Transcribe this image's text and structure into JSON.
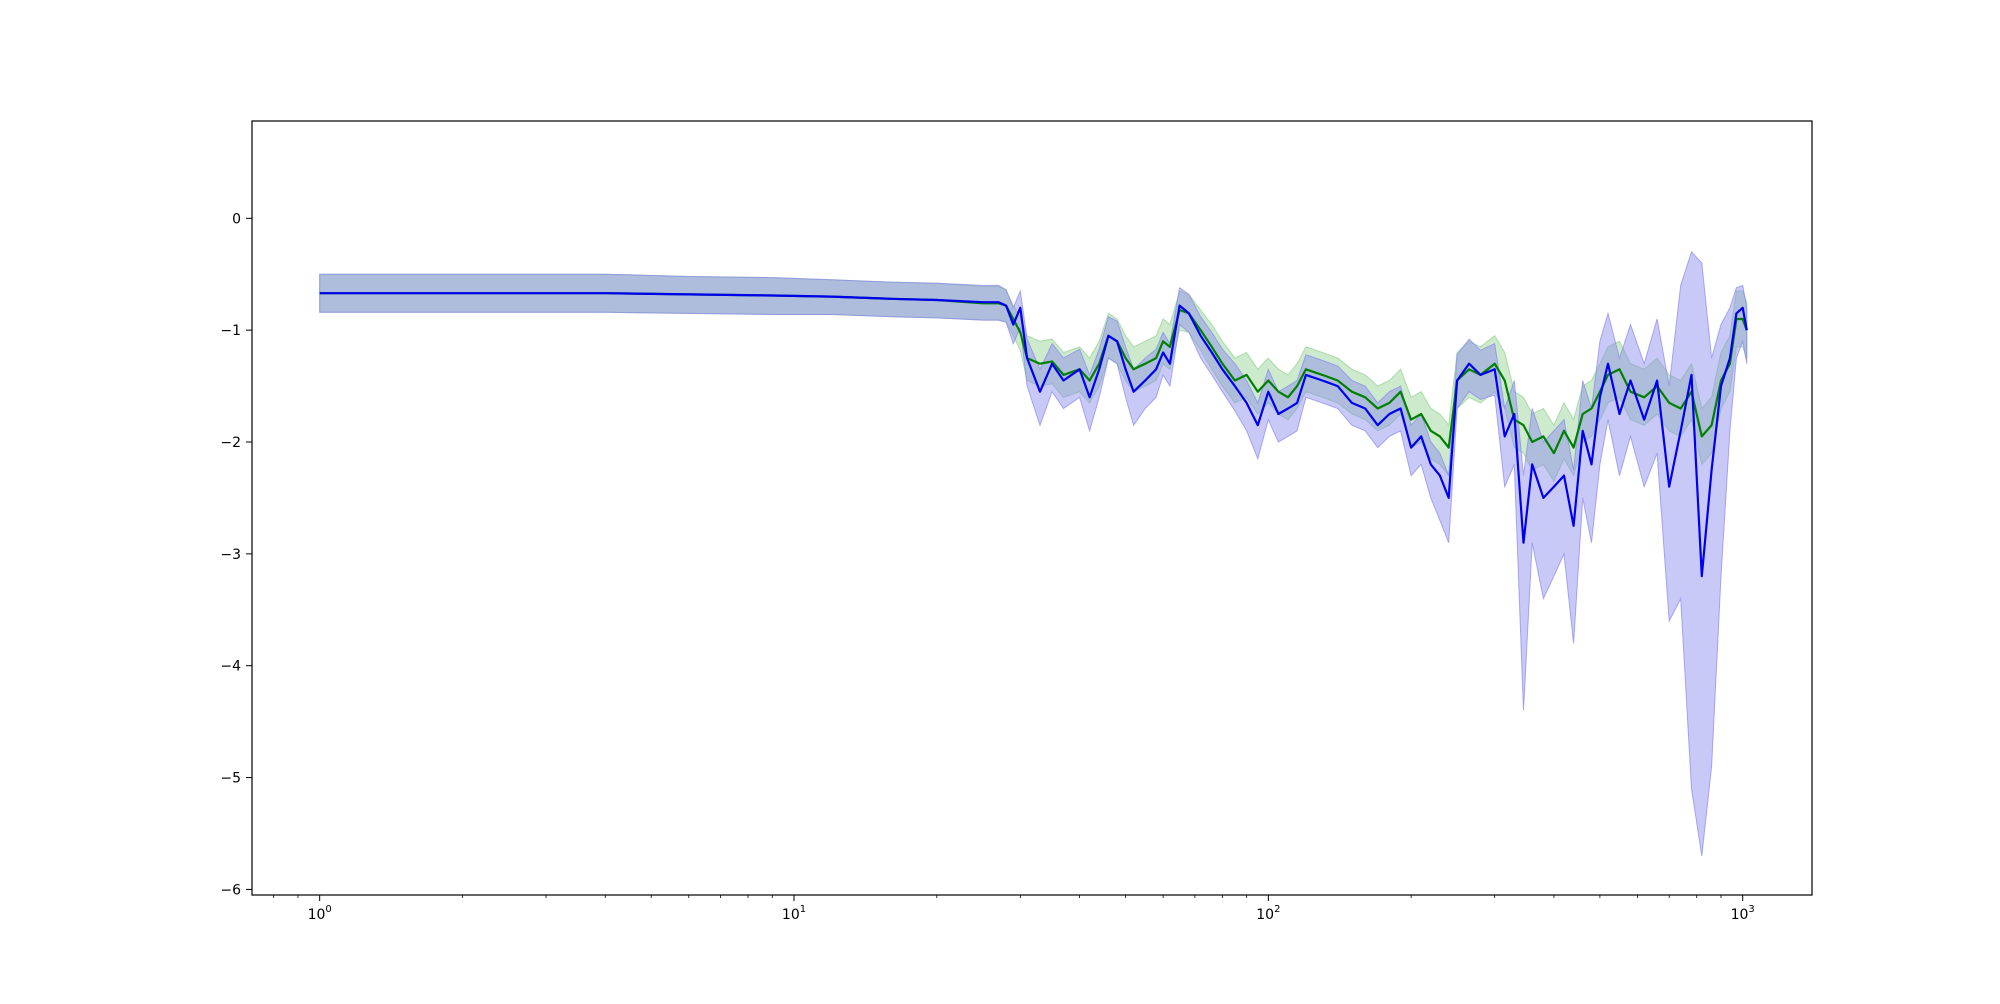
{
  "chart_data": {
    "type": "line",
    "title": "",
    "xlabel": "",
    "ylabel": "",
    "xscale": "log",
    "xlim": [
      0.72,
      1400
    ],
    "ylim": [
      -6.05,
      0.87
    ],
    "grid": false,
    "legend": "none",
    "x_ticks": [
      {
        "value": 1,
        "base": "10",
        "exp": "0"
      },
      {
        "value": 10,
        "base": "10",
        "exp": "1"
      },
      {
        "value": 100,
        "base": "10",
        "exp": "2"
      },
      {
        "value": 1000,
        "base": "10",
        "exp": "3"
      }
    ],
    "y_ticks": [
      {
        "value": 0,
        "label": "0"
      },
      {
        "value": -1,
        "label": "−1"
      },
      {
        "value": -2,
        "label": "−2"
      },
      {
        "value": -3,
        "label": "−3"
      },
      {
        "value": -4,
        "label": "−4"
      },
      {
        "value": -5,
        "label": "−5"
      },
      {
        "value": -6,
        "label": "−6"
      }
    ],
    "series": [
      {
        "color": "#008000",
        "band_color": "#90d090",
        "x": [
          1,
          2,
          4,
          6,
          9,
          12,
          16,
          20,
          25,
          27,
          28,
          29,
          30,
          31,
          33,
          35,
          37,
          40,
          42,
          44,
          46,
          48,
          50,
          52,
          55,
          58,
          60,
          62,
          65,
          68,
          72,
          76,
          80,
          85,
          90,
          95,
          100,
          105,
          110,
          115,
          120,
          130,
          140,
          150,
          160,
          170,
          180,
          190,
          200,
          210,
          220,
          230,
          240,
          250,
          265,
          280,
          300,
          315,
          330,
          345,
          360,
          380,
          400,
          420,
          440,
          460,
          480,
          500,
          520,
          550,
          580,
          620,
          660,
          700,
          740,
          780,
          820,
          860,
          900,
          940,
          970,
          1000,
          1020
        ],
        "y": [
          -0.67,
          -0.67,
          -0.67,
          -0.68,
          -0.69,
          -0.7,
          -0.72,
          -0.73,
          -0.76,
          -0.76,
          -0.78,
          -0.9,
          -1.02,
          -1.25,
          -1.3,
          -1.28,
          -1.4,
          -1.35,
          -1.45,
          -1.3,
          -1.05,
          -1.1,
          -1.25,
          -1.35,
          -1.3,
          -1.25,
          -1.1,
          -1.15,
          -0.82,
          -0.85,
          -1.0,
          -1.15,
          -1.3,
          -1.45,
          -1.4,
          -1.55,
          -1.45,
          -1.55,
          -1.6,
          -1.5,
          -1.35,
          -1.4,
          -1.45,
          -1.55,
          -1.6,
          -1.7,
          -1.65,
          -1.55,
          -1.8,
          -1.75,
          -1.9,
          -1.95,
          -2.05,
          -1.45,
          -1.35,
          -1.4,
          -1.3,
          -1.45,
          -1.8,
          -1.85,
          -2.0,
          -1.95,
          -2.1,
          -1.9,
          -2.05,
          -1.75,
          -1.7,
          -1.55,
          -1.4,
          -1.35,
          -1.55,
          -1.6,
          -1.5,
          -1.65,
          -1.7,
          -1.55,
          -1.95,
          -1.85,
          -1.45,
          -1.3,
          -0.9,
          -0.9,
          -1.0
        ],
        "upper": [
          -0.5,
          -0.5,
          -0.5,
          -0.52,
          -0.53,
          -0.55,
          -0.57,
          -0.58,
          -0.61,
          -0.61,
          -0.64,
          -0.78,
          -0.88,
          -1.05,
          -1.1,
          -1.08,
          -1.2,
          -1.15,
          -1.25,
          -1.1,
          -0.85,
          -0.9,
          -1.05,
          -1.15,
          -1.1,
          -1.05,
          -0.9,
          -0.95,
          -0.65,
          -0.68,
          -0.82,
          -0.95,
          -1.1,
          -1.25,
          -1.2,
          -1.35,
          -1.25,
          -1.35,
          -1.4,
          -1.3,
          -1.15,
          -1.2,
          -1.25,
          -1.35,
          -1.4,
          -1.5,
          -1.45,
          -1.35,
          -1.6,
          -1.55,
          -1.7,
          -1.75,
          -1.85,
          -1.2,
          -1.1,
          -1.15,
          -1.05,
          -1.2,
          -1.55,
          -1.6,
          -1.75,
          -1.7,
          -1.85,
          -1.65,
          -1.8,
          -1.5,
          -1.45,
          -1.3,
          -1.15,
          -1.1,
          -1.3,
          -1.35,
          -1.25,
          -1.4,
          -1.45,
          -1.3,
          -1.7,
          -1.6,
          -1.2,
          -1.05,
          -0.65,
          -0.65,
          -0.75
        ],
        "lower": [
          -0.84,
          -0.84,
          -0.84,
          -0.85,
          -0.86,
          -0.86,
          -0.88,
          -0.89,
          -0.91,
          -0.91,
          -0.93,
          -1.05,
          -1.18,
          -1.45,
          -1.5,
          -1.48,
          -1.6,
          -1.55,
          -1.65,
          -1.5,
          -1.25,
          -1.3,
          -1.45,
          -1.55,
          -1.5,
          -1.45,
          -1.3,
          -1.35,
          -1.0,
          -1.02,
          -1.18,
          -1.35,
          -1.5,
          -1.65,
          -1.6,
          -1.75,
          -1.65,
          -1.75,
          -1.8,
          -1.7,
          -1.55,
          -1.6,
          -1.65,
          -1.75,
          -1.8,
          -1.9,
          -1.85,
          -1.75,
          -2.05,
          -2.0,
          -2.15,
          -2.2,
          -2.3,
          -1.7,
          -1.6,
          -1.65,
          -1.55,
          -1.7,
          -2.05,
          -2.1,
          -2.25,
          -2.2,
          -2.35,
          -2.15,
          -2.3,
          -2.0,
          -1.95,
          -1.8,
          -1.65,
          -1.6,
          -1.8,
          -1.85,
          -1.75,
          -1.9,
          -1.95,
          -1.8,
          -2.2,
          -2.1,
          -1.7,
          -1.55,
          -1.15,
          -1.15,
          -1.25
        ]
      },
      {
        "color": "#0000ee",
        "band_color": "#8888ee",
        "x": [
          1,
          2,
          4,
          6,
          9,
          12,
          16,
          20,
          25,
          27,
          28,
          29,
          30,
          31,
          33,
          35,
          37,
          40,
          42,
          44,
          46,
          48,
          50,
          52,
          55,
          58,
          60,
          62,
          65,
          68,
          72,
          76,
          80,
          85,
          90,
          95,
          100,
          105,
          110,
          115,
          120,
          130,
          140,
          150,
          160,
          170,
          180,
          190,
          200,
          210,
          220,
          230,
          240,
          250,
          265,
          280,
          300,
          315,
          330,
          345,
          360,
          380,
          400,
          420,
          440,
          460,
          480,
          500,
          520,
          550,
          580,
          620,
          660,
          700,
          740,
          780,
          820,
          860,
          900,
          940,
          970,
          1000,
          1020
        ],
        "y": [
          -0.67,
          -0.67,
          -0.67,
          -0.68,
          -0.69,
          -0.7,
          -0.72,
          -0.73,
          -0.75,
          -0.75,
          -0.78,
          -0.95,
          -0.8,
          -1.25,
          -1.55,
          -1.3,
          -1.45,
          -1.35,
          -1.6,
          -1.35,
          -1.05,
          -1.1,
          -1.35,
          -1.55,
          -1.45,
          -1.35,
          -1.2,
          -1.3,
          -0.78,
          -0.85,
          -1.05,
          -1.2,
          -1.35,
          -1.5,
          -1.65,
          -1.85,
          -1.55,
          -1.75,
          -1.7,
          -1.65,
          -1.4,
          -1.45,
          -1.5,
          -1.65,
          -1.7,
          -1.85,
          -1.75,
          -1.7,
          -2.05,
          -1.95,
          -2.2,
          -2.3,
          -2.5,
          -1.45,
          -1.3,
          -1.4,
          -1.35,
          -1.95,
          -1.75,
          -2.9,
          -2.2,
          -2.5,
          -2.4,
          -2.3,
          -2.75,
          -1.9,
          -2.2,
          -1.6,
          -1.3,
          -1.75,
          -1.45,
          -1.8,
          -1.45,
          -2.4,
          -1.9,
          -1.4,
          -3.2,
          -2.25,
          -1.5,
          -1.25,
          -0.85,
          -0.8,
          -1.0
        ],
        "upper": [
          -0.5,
          -0.5,
          -0.5,
          -0.52,
          -0.53,
          -0.55,
          -0.57,
          -0.58,
          -0.6,
          -0.6,
          -0.64,
          -0.8,
          -0.65,
          -1.08,
          -1.35,
          -1.12,
          -1.25,
          -1.17,
          -1.4,
          -1.17,
          -0.88,
          -0.92,
          -1.15,
          -1.35,
          -1.25,
          -1.17,
          -1.02,
          -1.12,
          -0.62,
          -0.68,
          -0.88,
          -1.02,
          -1.17,
          -1.3,
          -1.45,
          -1.65,
          -1.35,
          -1.55,
          -1.5,
          -1.45,
          -1.22,
          -1.27,
          -1.32,
          -1.45,
          -1.5,
          -1.65,
          -1.55,
          -1.5,
          -1.85,
          -1.75,
          -2.0,
          -2.1,
          -2.3,
          -1.22,
          -1.08,
          -1.18,
          -1.12,
          -1.7,
          -1.45,
          -2.3,
          -1.7,
          -2.0,
          -1.9,
          -1.8,
          -2.25,
          -1.45,
          -1.7,
          -1.1,
          -0.85,
          -1.25,
          -0.95,
          -1.3,
          -0.9,
          -1.5,
          -0.6,
          -0.3,
          -0.4,
          -1.25,
          -0.95,
          -0.8,
          -0.62,
          -0.6,
          -0.8
        ],
        "lower": [
          -0.84,
          -0.84,
          -0.84,
          -0.85,
          -0.86,
          -0.86,
          -0.88,
          -0.89,
          -0.91,
          -0.91,
          -0.93,
          -1.12,
          -0.98,
          -1.5,
          -1.85,
          -1.55,
          -1.7,
          -1.6,
          -1.9,
          -1.6,
          -1.25,
          -1.3,
          -1.6,
          -1.85,
          -1.7,
          -1.6,
          -1.4,
          -1.5,
          -0.95,
          -1.02,
          -1.25,
          -1.4,
          -1.55,
          -1.72,
          -1.9,
          -2.15,
          -1.8,
          -2.0,
          -1.95,
          -1.9,
          -1.6,
          -1.65,
          -1.7,
          -1.85,
          -1.9,
          -2.05,
          -1.95,
          -1.9,
          -2.3,
          -2.2,
          -2.5,
          -2.7,
          -2.9,
          -1.7,
          -1.55,
          -1.62,
          -1.58,
          -2.4,
          -2.2,
          -4.4,
          -2.9,
          -3.4,
          -3.2,
          -3.0,
          -3.8,
          -2.5,
          -2.9,
          -2.2,
          -1.8,
          -2.3,
          -1.95,
          -2.4,
          -2.1,
          -3.6,
          -3.4,
          -5.1,
          -5.7,
          -4.9,
          -3.2,
          -1.9,
          -1.25,
          -1.1,
          -1.3
        ]
      }
    ]
  }
}
